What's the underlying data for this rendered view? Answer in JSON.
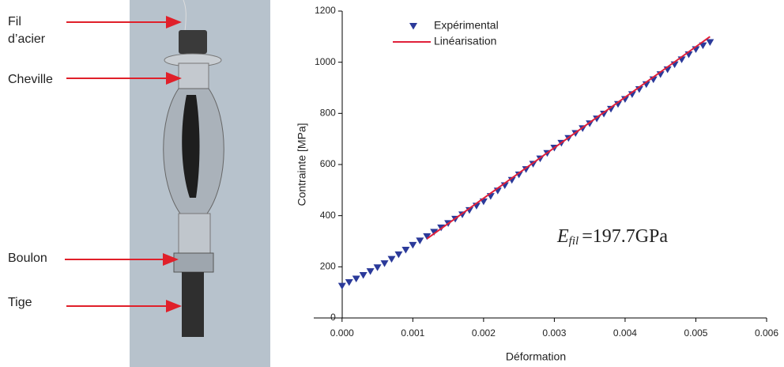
{
  "figure_labels": {
    "wire": [
      "Fil",
      "d’acier"
    ],
    "anchor": "Cheville",
    "bolt": "Boulon",
    "rod": "Tige"
  },
  "chart_data": {
    "type": "scatter",
    "x_label": "Déformation",
    "y_label": "Contrainte [MPa]",
    "xlim": [
      -0.0004,
      0.006
    ],
    "ylim": [
      0,
      1200
    ],
    "xticks": [
      {
        "value": 0,
        "label": "0.000"
      },
      0.001,
      0.002,
      0.003,
      0.004,
      0.005,
      0.006
    ],
    "yticks": [
      0,
      200,
      400,
      600,
      800,
      1000,
      1200
    ],
    "legend": "top-left",
    "annotation": {
      "symbol": "E",
      "subscript": "fil",
      "text": "=197.7GPa"
    },
    "series": [
      {
        "name": "Expérimental",
        "color": "#2b3a9a",
        "marker": "triangle-down",
        "x": [
          0,
          0.0001,
          0.0002,
          0.0003,
          0.0004,
          0.0005,
          0.0006,
          0.0007,
          0.0008,
          0.0009,
          0.001,
          0.0011,
          0.0012,
          0.0013,
          0.0014,
          0.0015,
          0.0016,
          0.0017,
          0.0018,
          0.0019,
          0.002,
          0.0021,
          0.0022,
          0.0023,
          0.0024,
          0.0025,
          0.0026,
          0.0027,
          0.0028,
          0.0029,
          0.003,
          0.0031,
          0.0032,
          0.0033,
          0.0034,
          0.0035,
          0.0036,
          0.0037,
          0.0038,
          0.0039,
          0.004,
          0.0041,
          0.0042,
          0.0043,
          0.0044,
          0.0045,
          0.0046,
          0.0047,
          0.0048,
          0.0049,
          0.005,
          0.0051,
          0.0052
        ],
        "values": [
          125,
          139,
          153,
          167,
          182,
          197,
          213,
          230,
          248,
          266,
          285,
          302,
          319,
          336,
          353,
          370,
          387,
          404,
          421,
          438,
          455,
          476,
          497,
          518,
          539,
          560,
          581,
          602,
          623,
          644,
          665,
          684,
          703,
          722,
          741,
          760,
          779,
          798,
          817,
          836,
          855,
          874,
          894,
          913,
          932,
          952,
          971,
          991,
          1010,
          1030,
          1050,
          1065,
          1078
        ]
      },
      {
        "name": "Linéarisation",
        "color": "#e0203a",
        "marker": "line",
        "x": [
          0.0012,
          0.0052
        ],
        "values": [
          310,
          1100
        ]
      }
    ]
  }
}
